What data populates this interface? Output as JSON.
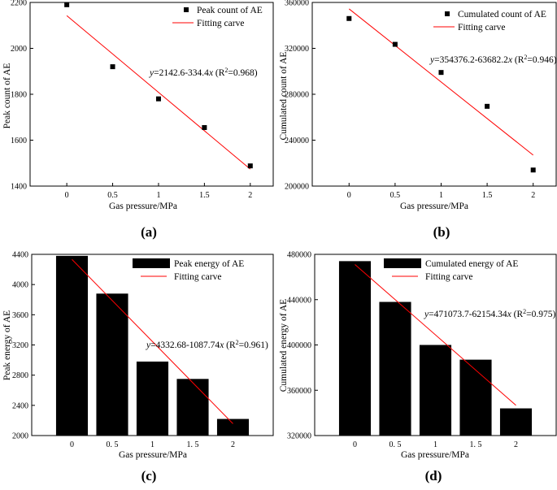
{
  "figure": {
    "panel_labels": [
      "(a)",
      "(b)",
      "(c)",
      "(d)"
    ]
  },
  "colors": {
    "fit_line": "#ff0000",
    "marker": "#000000",
    "bar": "#000000"
  },
  "chart_data": [
    {
      "panel": "(a)",
      "type": "scatter",
      "xlabel": "Gas pressure/MPa",
      "ylabel": "Peak count of AE",
      "x": [
        0,
        0.5,
        1,
        1.5,
        2
      ],
      "x_tick_labels": [
        "0",
        "0.5",
        "1",
        "1.5",
        "2"
      ],
      "y": [
        2190,
        1920,
        1780,
        1655,
        1488
      ],
      "ylim": [
        1400,
        2200
      ],
      "yticks": [
        1400,
        1600,
        1800,
        2000,
        2200
      ],
      "y_tick_labels": [
        "1400",
        "1600",
        "1800",
        "2000",
        "2200"
      ],
      "fit": {
        "intercept": 2142.6,
        "slope": -334.4,
        "r2": 0.968
      },
      "equation": {
        "y": "y",
        "rhs": "=2142.6-334.4",
        "x": "x",
        "r2_open": " (R",
        "sup": "2",
        "r2_close": "=0.968)"
      },
      "legend": {
        "series": "Peak count of AE",
        "fit": "Fitting carve"
      }
    },
    {
      "panel": "(b)",
      "type": "scatter",
      "xlabel": "Gas pressure/MPa",
      "ylabel": "Cumulated count of AE",
      "x": [
        0,
        0.5,
        1,
        1.5,
        2
      ],
      "x_tick_labels": [
        "0",
        "0.5",
        "1",
        "1.5",
        "2"
      ],
      "y": [
        346000,
        323500,
        299000,
        269500,
        214000
      ],
      "ylim": [
        200000,
        360000
      ],
      "yticks": [
        200000,
        240000,
        280000,
        320000,
        360000
      ],
      "y_tick_labels": [
        "200000",
        "240000",
        "280000",
        "320000",
        "360000"
      ],
      "fit": {
        "intercept": 354376.2,
        "slope": -63682.2,
        "r2": 0.946
      },
      "equation": {
        "y": "y",
        "rhs": "=354376.2-63682.2",
        "x": "x",
        "r2_open": " (R",
        "sup": "2",
        "r2_close": "=0.946)"
      },
      "legend": {
        "series": "Cumulated count of AE",
        "fit": "Fitting carve"
      }
    },
    {
      "panel": "(c)",
      "type": "bar",
      "xlabel": "Gas pressure/MPa",
      "ylabel": "Peak energy of AE",
      "x": [
        0,
        0.5,
        1,
        1.5,
        2
      ],
      "x_tick_labels": [
        "0",
        "0. 5",
        "1",
        "1. 5",
        "2"
      ],
      "values": [
        4380,
        3880,
        2980,
        2750,
        2220
      ],
      "ylim": [
        2000,
        4400
      ],
      "yticks": [
        2000,
        2400,
        2800,
        3200,
        3600,
        4000,
        4400
      ],
      "y_tick_labels": [
        "2000",
        "2400",
        "2800",
        "3200",
        "3600",
        "4000",
        "4400"
      ],
      "fit": {
        "intercept": 4332.68,
        "slope": -1087.74,
        "r2": 0.961
      },
      "equation": {
        "y": "y",
        "rhs": "=4332.68-1087.74",
        "x": "x",
        "r2_open": " (R",
        "sup": "2",
        "r2_close": "=0.961)"
      },
      "legend": {
        "series": "Peak energy of AE",
        "fit": "Fitting carve"
      }
    },
    {
      "panel": "(d)",
      "type": "bar",
      "xlabel": "Gas pressure/MPa",
      "ylabel": "Cumulated energy of AE",
      "x": [
        0,
        0.5,
        1,
        1.5,
        2
      ],
      "x_tick_labels": [
        "0",
        "0. 5",
        "1",
        "1. 5",
        "2"
      ],
      "values": [
        474000,
        438000,
        400000,
        387000,
        344000
      ],
      "ylim": [
        320000,
        480000
      ],
      "yticks": [
        320000,
        360000,
        400000,
        440000,
        480000
      ],
      "y_tick_labels": [
        "320000",
        "360000",
        "400000",
        "440000",
        "480000"
      ],
      "fit": {
        "intercept": 471073.7,
        "slope": -62154.34,
        "r2": 0.975
      },
      "equation": {
        "y": "y",
        "rhs": "=471073.7-62154.34",
        "x": "x",
        "r2_open": " (R",
        "sup": "2",
        "r2_close": "=0.975)"
      },
      "legend": {
        "series": "Cumulated energy of AE",
        "fit": "Fitting carve"
      }
    }
  ]
}
